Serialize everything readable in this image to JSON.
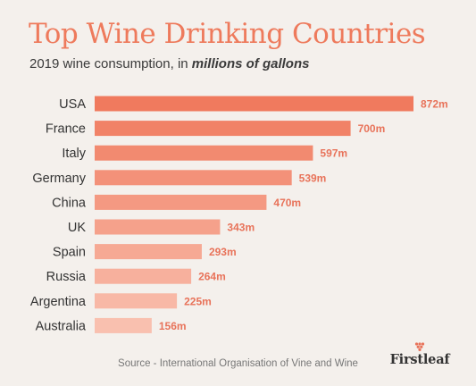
{
  "title": "Top Wine Drinking Countries",
  "subtitle": {
    "prefix": "2019 wine consumption, in ",
    "emphasis": "millions of gallons"
  },
  "source": "Source - International Organisation of Vine and Wine",
  "logo_text": "Firstleaf",
  "colors": {
    "accent": "#ee7a5c",
    "bar_dark": "#f07a5e",
    "bar_light": "#f9c0af",
    "label": "#333333",
    "value": "#e8735a"
  },
  "chart_data": {
    "type": "bar",
    "orientation": "horizontal",
    "categories": [
      "USA",
      "France",
      "Italy",
      "Germany",
      "China",
      "UK",
      "Spain",
      "Russia",
      "Argentina",
      "Australia"
    ],
    "values": [
      872,
      700,
      597,
      539,
      470,
      343,
      293,
      264,
      225,
      156
    ],
    "value_labels": [
      "872m",
      "700m",
      "597m",
      "539m",
      "470m",
      "343m",
      "293m",
      "264m",
      "225m",
      "156m"
    ],
    "grid": false,
    "legend": "none"
  }
}
